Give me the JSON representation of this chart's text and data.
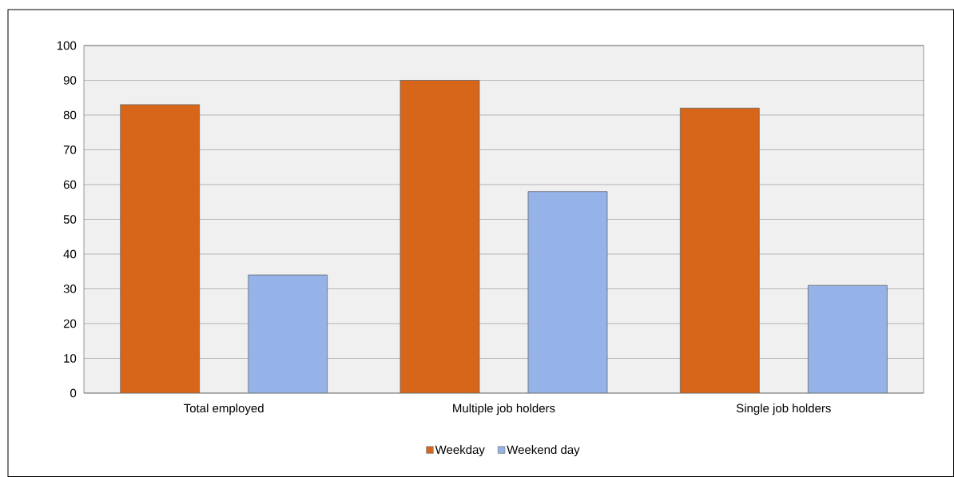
{
  "chart_data": {
    "type": "bar",
    "categories": [
      "Total employed",
      "Multiple job holders",
      "Single job holders"
    ],
    "series": [
      {
        "name": "Weekday",
        "color": "#d8661a",
        "values": [
          83,
          90,
          82
        ]
      },
      {
        "name": "Weekend day",
        "color": "#95b3e8",
        "values": [
          34,
          58,
          31
        ]
      }
    ],
    "ylim": [
      0,
      100
    ],
    "yticks": [
      0,
      10,
      20,
      30,
      40,
      50,
      60,
      70,
      80,
      90,
      100
    ],
    "grid": "y",
    "legend": "bottom"
  }
}
